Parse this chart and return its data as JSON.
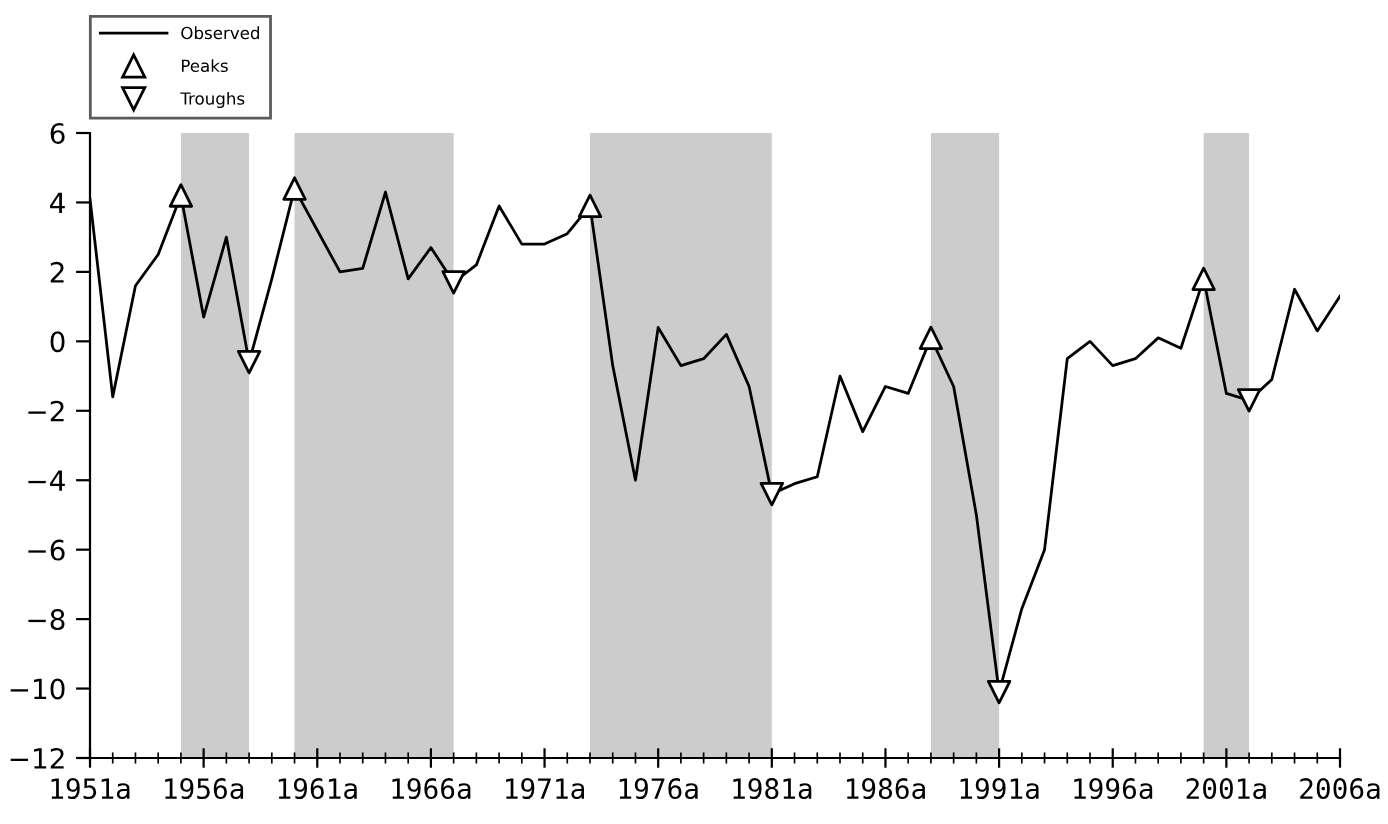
{
  "chart_data": {
    "type": "line",
    "series": [
      {
        "name": "Observed",
        "color": "#000000",
        "marker": "none",
        "x": [
          1951,
          1952,
          1953,
          1954,
          1955,
          1956,
          1957,
          1958,
          1959,
          1960,
          1961,
          1962,
          1963,
          1964,
          1965,
          1966,
          1967,
          1968,
          1969,
          1970,
          1971,
          1972,
          1973,
          1974,
          1975,
          1976,
          1977,
          1978,
          1979,
          1980,
          1981,
          1982,
          1983,
          1984,
          1985,
          1986,
          1987,
          1988,
          1989,
          1990,
          1991,
          1992,
          1993,
          1994,
          1995,
          1996,
          1997,
          1998,
          1999,
          2000,
          2001,
          2002,
          2003,
          2004,
          2005,
          2006
        ],
        "values": [
          4.1,
          -1.6,
          1.6,
          2.5,
          4.2,
          0.7,
          3.0,
          -0.6,
          1.8,
          4.4,
          3.2,
          2.0,
          2.1,
          4.3,
          1.8,
          2.7,
          1.7,
          2.2,
          3.9,
          2.8,
          2.8,
          3.1,
          3.9,
          -0.7,
          -4.0,
          0.4,
          -0.7,
          -0.5,
          0.2,
          -1.3,
          -4.4,
          -4.1,
          -3.9,
          -1.0,
          -2.6,
          -1.3,
          -1.5,
          0.1,
          -1.3,
          -5.0,
          -10.1,
          -7.7,
          -6.0,
          -0.5,
          0.0,
          -0.7,
          -0.5,
          0.1,
          -0.2,
          1.8,
          -1.5,
          -1.7,
          -1.1,
          1.5,
          0.3,
          1.3
        ]
      },
      {
        "name": "Peaks",
        "type": "scatter",
        "color": "#000000",
        "marker": "triangle",
        "x": [
          1955,
          1960,
          1973,
          1988,
          2000
        ],
        "values": [
          4.2,
          4.4,
          3.9,
          0.1,
          1.8
        ]
      },
      {
        "name": "Troughs",
        "type": "scatter",
        "color": "#000000",
        "marker": "triangle_down",
        "x": [
          1958,
          1967,
          1981,
          1991,
          2002
        ],
        "values": [
          -0.6,
          1.7,
          -4.4,
          -10.1,
          -1.7
        ]
      }
    ],
    "bands": [
      {
        "axis": "x",
        "from": 1955,
        "to": 1958,
        "color": "#cccccc"
      },
      {
        "axis": "x",
        "from": 1960,
        "to": 1967,
        "color": "#cccccc"
      },
      {
        "axis": "x",
        "from": 1973,
        "to": 1981,
        "color": "#cccccc"
      },
      {
        "axis": "x",
        "from": 1988,
        "to": 1991,
        "color": "#cccccc"
      },
      {
        "axis": "x",
        "from": 2000,
        "to": 2002,
        "color": "#cccccc"
      }
    ],
    "xlim": [
      1951,
      2006
    ],
    "xticks": [
      {
        "value": 1951,
        "label": "1951a"
      },
      {
        "value": 1956,
        "label": "1956a"
      },
      {
        "value": 1961,
        "label": "1961a"
      },
      {
        "value": 1966,
        "label": "1966a"
      },
      {
        "value": 1971,
        "label": "1971a"
      },
      {
        "value": 1976,
        "label": "1976a"
      },
      {
        "value": 1981,
        "label": "1981a"
      },
      {
        "value": 1986,
        "label": "1986a"
      },
      {
        "value": 1991,
        "label": "1991a"
      },
      {
        "value": 1996,
        "label": "1996a"
      },
      {
        "value": 2001,
        "label": "2001a"
      },
      {
        "value": 2006,
        "label": "2006a"
      }
    ],
    "ylim": [
      -12,
      6
    ],
    "yticks": [
      -12,
      -10,
      -8,
      -6,
      -4,
      -2,
      0,
      2,
      4,
      6
    ],
    "grid": false,
    "legend": "top left"
  }
}
